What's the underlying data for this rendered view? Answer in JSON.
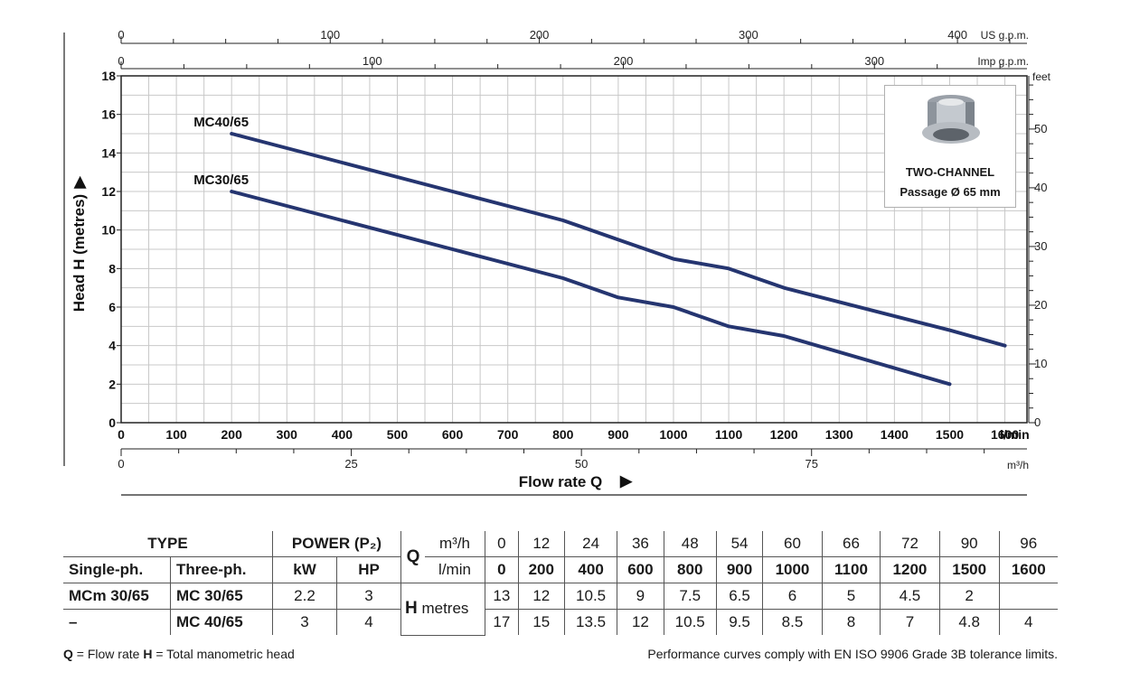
{
  "chart_data": {
    "type": "line",
    "xlabel": "Flow rate Q",
    "ylabel": "Head H (metres)",
    "x_unit": "l/min",
    "x_ticks": [
      0,
      100,
      200,
      300,
      400,
      500,
      600,
      700,
      800,
      900,
      1000,
      1100,
      1200,
      1300,
      1400,
      1500,
      1600
    ],
    "xlim": [
      0,
      1640
    ],
    "y_ticks": [
      0,
      2,
      4,
      6,
      8,
      10,
      12,
      14,
      16,
      18
    ],
    "ylim": [
      0,
      18
    ],
    "secondary_axes": {
      "us_gpm": {
        "label": "US g.p.m.",
        "ticks": [
          0,
          100,
          200,
          300,
          400
        ]
      },
      "imp_gpm": {
        "label": "Imp g.p.m.",
        "ticks": [
          0,
          100,
          200,
          300
        ]
      },
      "m3h": {
        "label": "m³/h",
        "ticks": [
          0,
          25,
          50,
          75
        ]
      },
      "feet": {
        "label": "feet",
        "ticks": [
          0,
          10,
          20,
          30,
          40,
          50
        ]
      }
    },
    "series": [
      {
        "name": "MC40/65",
        "x": [
          200,
          400,
          600,
          800,
          900,
          1000,
          1100,
          1200,
          1500,
          1600
        ],
        "y": [
          15,
          13.5,
          12,
          10.5,
          9.5,
          8.5,
          8,
          7,
          4.8,
          4
        ]
      },
      {
        "name": "MC30/65",
        "x": [
          200,
          400,
          600,
          800,
          900,
          1000,
          1100,
          1200,
          1500
        ],
        "y": [
          12,
          10.5,
          9,
          7.5,
          6.5,
          6,
          5,
          4.5,
          2
        ]
      }
    ],
    "grid": true,
    "legend": "curve labels near start of lines"
  },
  "inset": {
    "line1": "TWO-CHANNEL",
    "line2": "Passage Ø 65 mm"
  },
  "table": {
    "type_header": "TYPE",
    "power_header": "POWER (P₂)",
    "single_ph": "Single-ph.",
    "three_ph": "Three-ph.",
    "kw": "kW",
    "hp": "HP",
    "q_label": "Q",
    "m3h_label": "m³/h",
    "lmin_label": "l/min",
    "h_label": "H",
    "h_unit": "metres",
    "m3h_values": [
      "0",
      "12",
      "24",
      "36",
      "48",
      "54",
      "60",
      "66",
      "72",
      "90",
      "96"
    ],
    "lmin_values": [
      "0",
      "200",
      "400",
      "600",
      "800",
      "900",
      "1000",
      "1100",
      "1200",
      "1500",
      "1600"
    ],
    "rows": [
      {
        "single": "MCm 30/65",
        "three": "MC 30/65",
        "kw": "2.2",
        "hp": "3",
        "h": [
          "13",
          "12",
          "10.5",
          "9",
          "7.5",
          "6.5",
          "6",
          "5",
          "4.5",
          "2",
          ""
        ]
      },
      {
        "single": "–",
        "three": "MC 40/65",
        "kw": "3",
        "hp": "4",
        "h": [
          "17",
          "15",
          "13.5",
          "12",
          "10.5",
          "9.5",
          "8.5",
          "8",
          "7",
          "4.8",
          "4"
        ]
      }
    ]
  },
  "footer": {
    "q_abbr": "Q",
    "q_def": " = Flow rate ",
    "h_abbr": "H",
    "h_def": " = Total manometric head",
    "note": "Performance curves comply with EN ISO 9906 Grade 3B tolerance limits."
  },
  "colors": {
    "curve": "#253570",
    "grid": "#c8c8c8"
  }
}
